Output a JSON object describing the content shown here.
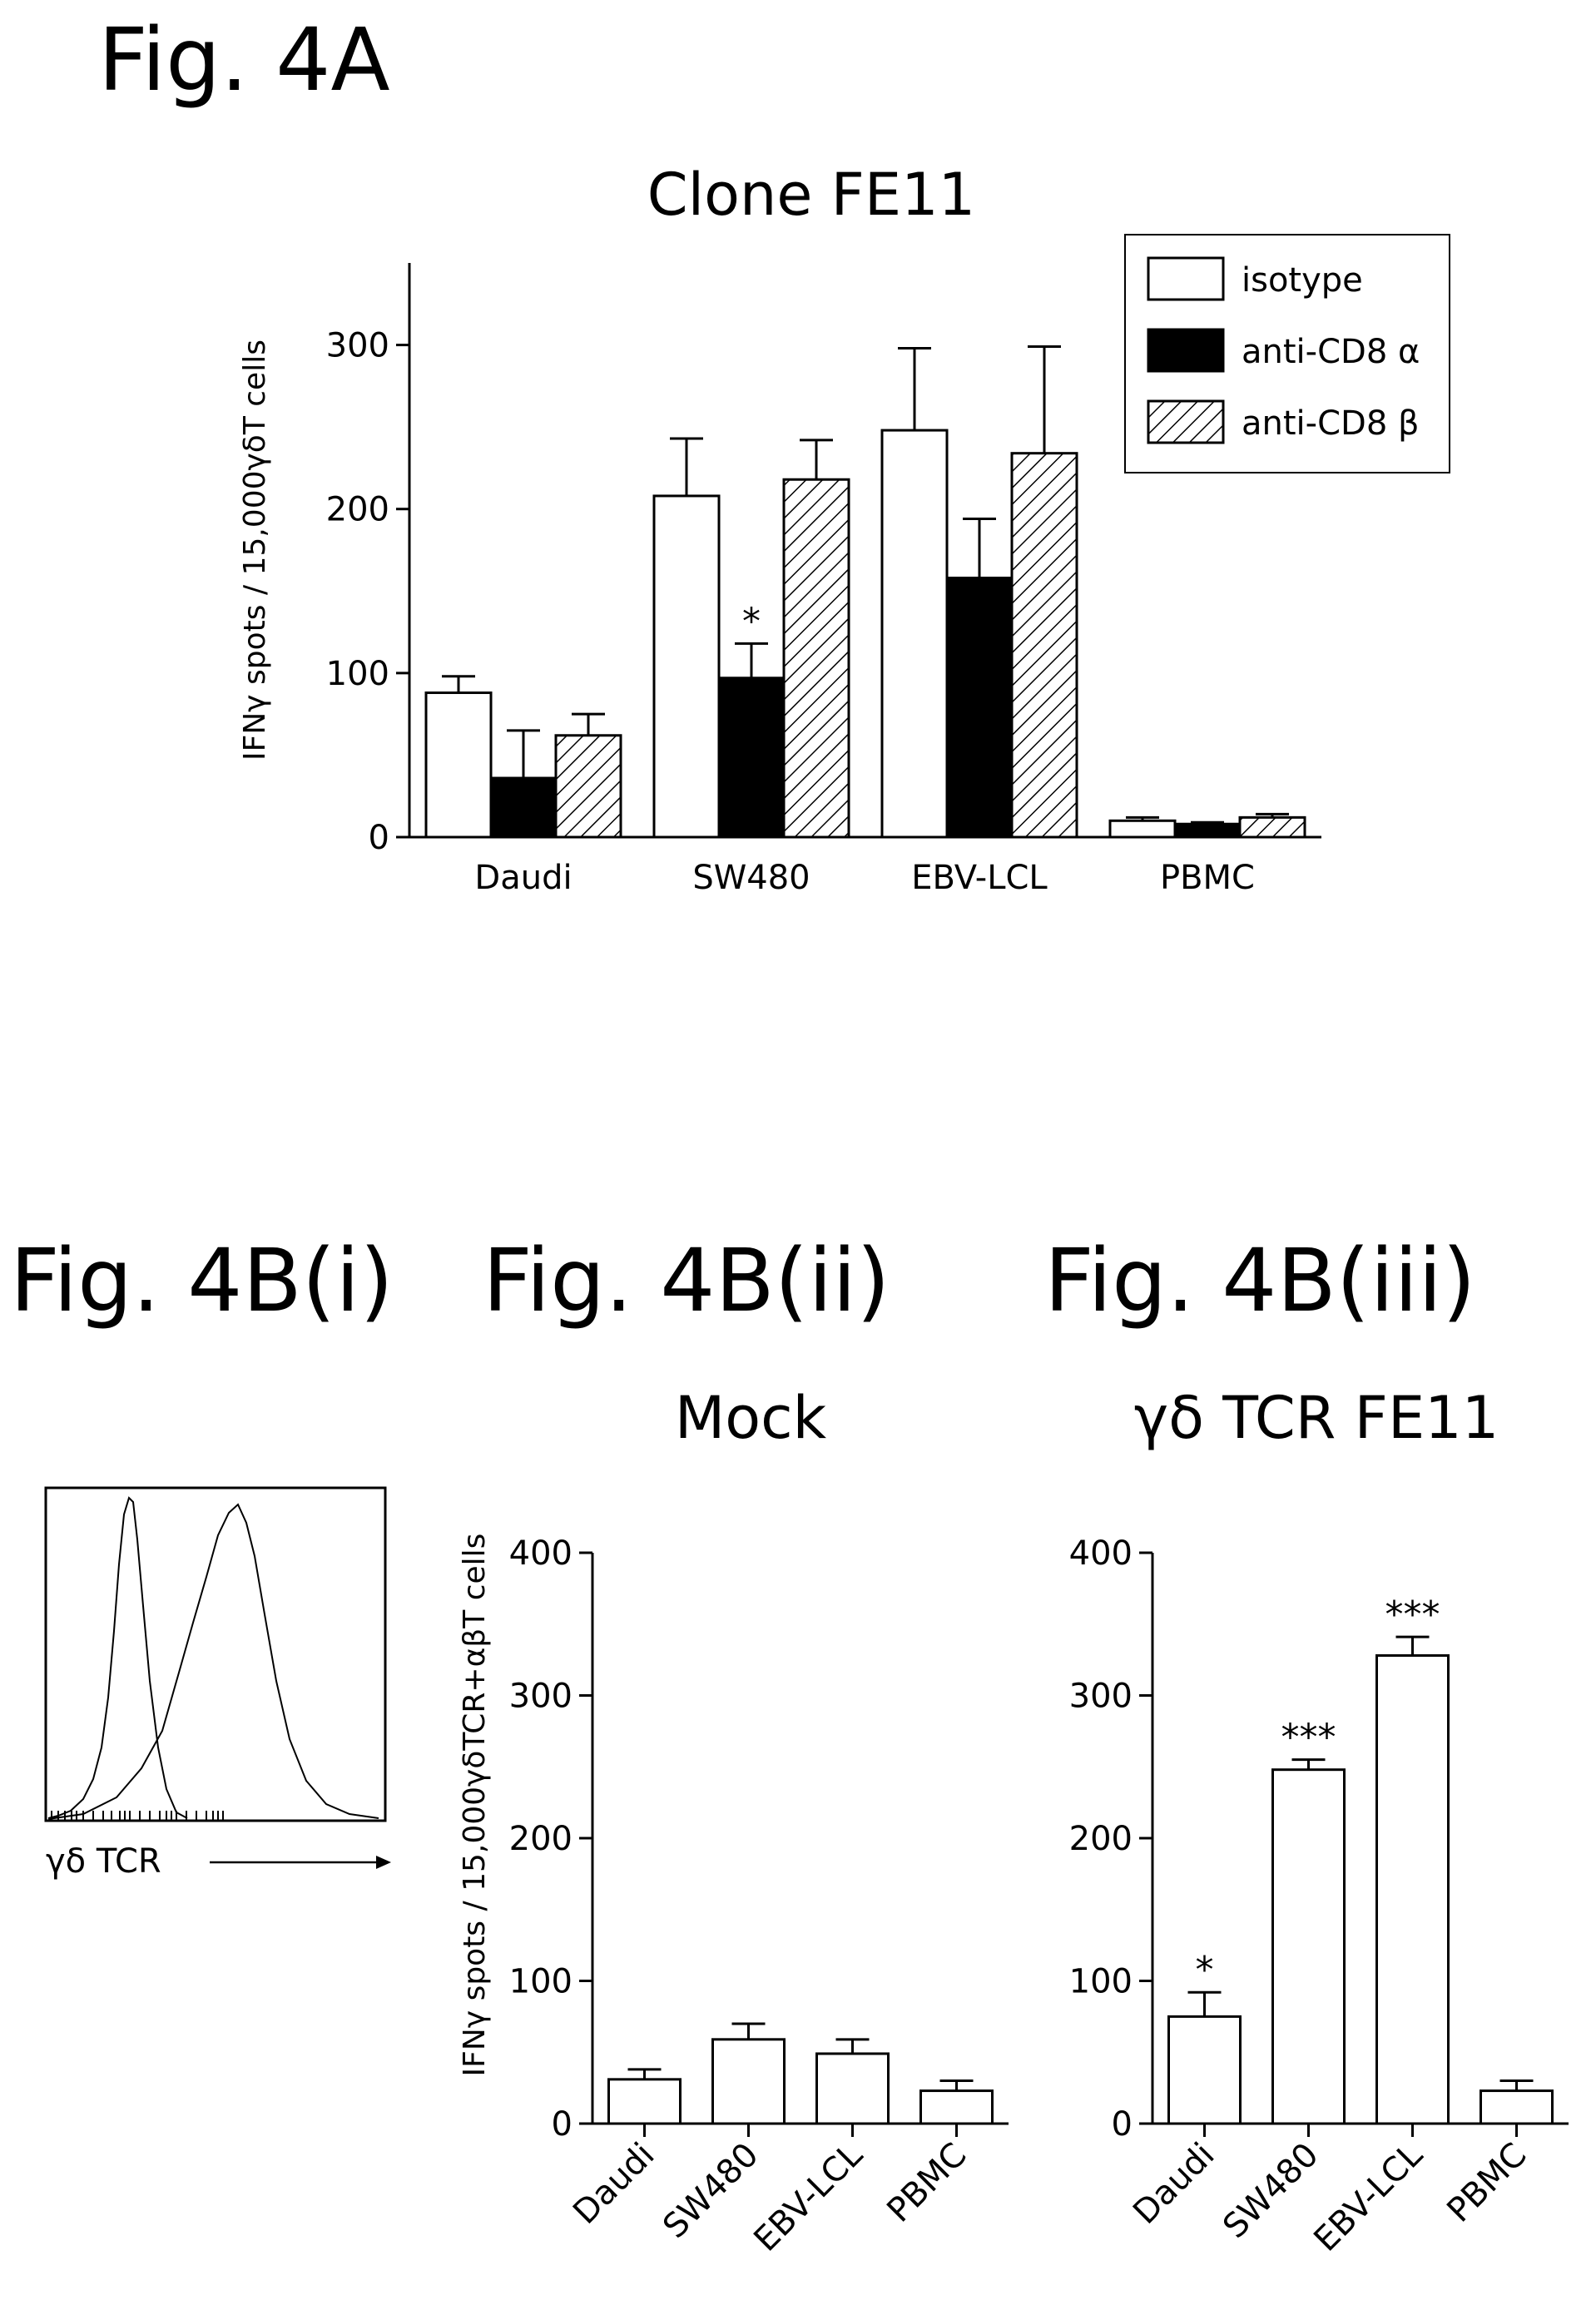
{
  "figure_labels": {
    "fig4a": "Fig. 4A",
    "fig4bi": "Fig. 4B(i)",
    "fig4bii": "Fig. 4B(ii)",
    "fig4biii": "Fig. 4B(iii)"
  },
  "flow": {
    "axis_label": "γδ TCR"
  },
  "chart_data": [
    {
      "id": "fig4a",
      "type": "bar",
      "title": "Clone FE11",
      "ylabel": "IFNγ spots / 15,000γδT cells",
      "xlabel": "",
      "ylim": [
        0,
        350
      ],
      "yticks": [
        0,
        100,
        200,
        300
      ],
      "categories": [
        "Daudi",
        "SW480",
        "EBV-LCL",
        "PBMC"
      ],
      "legend_position": "top-right",
      "series": [
        {
          "name": "isotype",
          "fill": "white",
          "values": [
            88,
            208,
            248,
            10
          ],
          "errors": [
            10,
            35,
            50,
            2
          ]
        },
        {
          "name": "anti-CD8 α",
          "fill": "black",
          "values": [
            36,
            97,
            158,
            8
          ],
          "errors": [
            29,
            21,
            36,
            1
          ]
        },
        {
          "name": "anti-CD8 β",
          "fill": "hatch",
          "values": [
            62,
            218,
            234,
            12
          ],
          "errors": [
            13,
            24,
            65,
            2
          ]
        }
      ],
      "annotations": [
        {
          "category": "SW480",
          "series": "anti-CD8 α",
          "text": "*"
        }
      ]
    },
    {
      "id": "fig4bii",
      "type": "bar",
      "title": "Mock",
      "ylabel": "IFNγ spots / 15,000γδTCR+αβT cells",
      "xlabel": "",
      "ylim": [
        0,
        400
      ],
      "yticks": [
        0,
        100,
        200,
        300,
        400
      ],
      "categories": [
        "Daudi",
        "SW480",
        "EBV-LCL",
        "PBMC"
      ],
      "series": [
        {
          "fill": "white",
          "values": [
            31,
            59,
            49,
            23
          ],
          "errors": [
            7,
            11,
            10,
            7
          ]
        }
      ],
      "annotations": []
    },
    {
      "id": "fig4biii",
      "type": "bar",
      "title": "γδ TCR FE11",
      "xlabel": "",
      "ylim": [
        0,
        400
      ],
      "yticks": [
        0,
        100,
        200,
        300,
        400
      ],
      "categories": [
        "Daudi",
        "SW480",
        "EBV-LCL",
        "PBMC"
      ],
      "series": [
        {
          "fill": "white",
          "values": [
            75,
            248,
            328,
            23
          ],
          "errors": [
            17,
            7,
            13,
            7
          ]
        }
      ],
      "annotations": [
        {
          "category": "Daudi",
          "text": "*"
        },
        {
          "category": "SW480",
          "text": "***"
        },
        {
          "category": "EBV-LCL",
          "text": "***"
        }
      ]
    }
  ]
}
